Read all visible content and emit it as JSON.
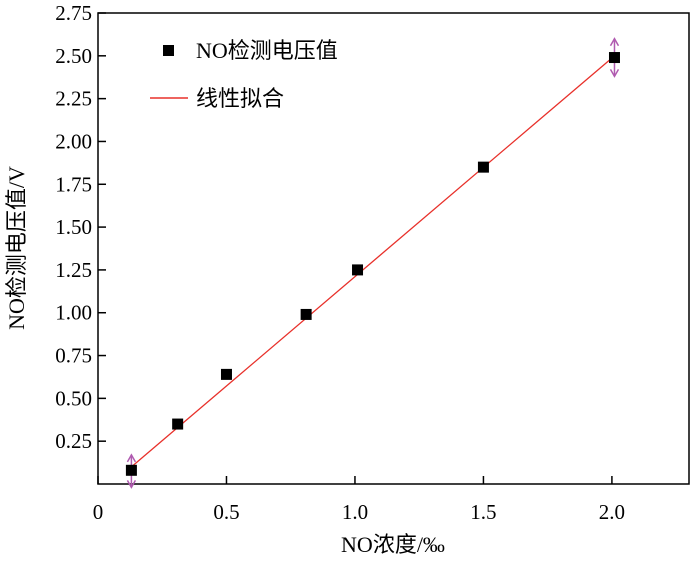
{
  "chart_data": {
    "type": "scatter",
    "xlabel": "NO浓度/‰",
    "ylabel": "NO检测电压值/V",
    "xlim": [
      0,
      2.3
    ],
    "ylim": [
      0,
      2.75
    ],
    "x_ticks": [
      "0",
      "0.5",
      "1.0",
      "1.5",
      "2.0"
    ],
    "y_ticks": [
      "0.25",
      "0.50",
      "0.75",
      "1.00",
      "1.25",
      "1.50",
      "1.75",
      "2.00",
      "2.25",
      "2.50",
      "2.75"
    ],
    "grid": false,
    "legend_position": "top-left",
    "series": [
      {
        "name": "NO检测电压值",
        "kind": "scatter",
        "marker": "square",
        "color": "#000000",
        "points": [
          {
            "x": 0.13,
            "y": 0.08
          },
          {
            "x": 0.31,
            "y": 0.35
          },
          {
            "x": 0.5,
            "y": 0.64
          },
          {
            "x": 0.81,
            "y": 0.99
          },
          {
            "x": 1.01,
            "y": 1.25
          },
          {
            "x": 1.5,
            "y": 1.85
          },
          {
            "x": 2.01,
            "y": 2.49
          }
        ]
      },
      {
        "name": "线性拟合",
        "kind": "line",
        "color": "#e8302a",
        "points": [
          {
            "x": 0.13,
            "y": 0.1
          },
          {
            "x": 2.01,
            "y": 2.5
          }
        ]
      }
    ],
    "error_bars": {
      "color": "#b05bb0",
      "items": [
        {
          "x": 0.13,
          "y": 0.08,
          "low": -0.02,
          "high": 0.17
        },
        {
          "x": 2.01,
          "y": 2.49,
          "low": 2.38,
          "high": 2.6
        }
      ]
    }
  }
}
